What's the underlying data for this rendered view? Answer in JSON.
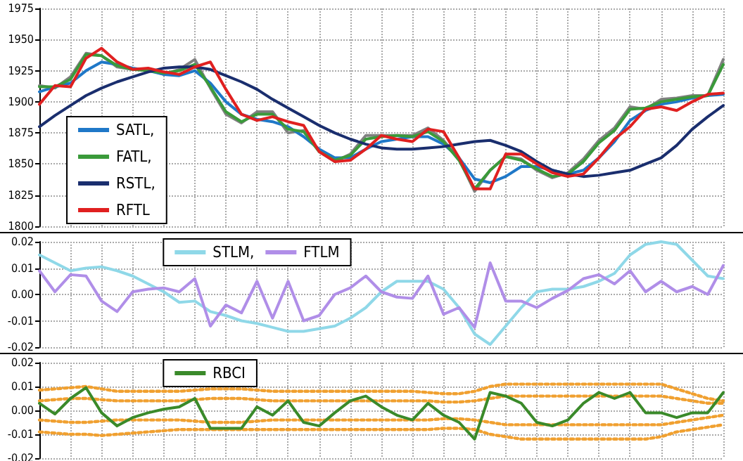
{
  "chart_data": [
    {
      "type": "line",
      "categories": [
        null,
        null,
        null,
        null,
        null,
        null,
        null,
        null,
        null,
        null,
        null,
        null,
        null,
        null,
        null,
        null,
        null,
        null,
        null,
        null,
        null,
        null,
        null,
        null,
        null,
        null,
        null,
        null,
        null,
        null,
        null,
        null,
        null,
        null,
        null,
        null,
        null,
        null,
        null,
        null,
        null,
        null,
        null,
        null,
        null
      ],
      "series": [
        {
          "color": "#808080",
          "values": [
            1913,
            1911,
            1920,
            1939,
            1937,
            1928,
            1926,
            1926,
            1922,
            1926,
            1934,
            1911,
            1890,
            1883,
            1892,
            1892,
            1875,
            1877,
            1860,
            1852,
            1858,
            1873,
            1873,
            1873,
            1873,
            1879,
            1869,
            1854,
            1828,
            1845,
            1856,
            1854,
            1845,
            1839,
            1843,
            1854,
            1869,
            1879,
            1896,
            1894,
            1902,
            1903,
            1905,
            1905,
            1934
          ]
        },
        {
          "name": "SATL,",
          "color": "#1f78c8",
          "values": [
            1908,
            1912,
            1915,
            1925,
            1932,
            1930,
            1927,
            1925,
            1922,
            1921,
            1925,
            1915,
            1900,
            1890,
            1886,
            1884,
            1880,
            1872,
            1862,
            1855,
            1855,
            1862,
            1868,
            1870,
            1872,
            1872,
            1866,
            1855,
            1838,
            1835,
            1840,
            1848,
            1848,
            1845,
            1842,
            1845,
            1855,
            1868,
            1885,
            1893,
            1898,
            1900,
            1903,
            1905,
            1906
          ]
        },
        {
          "name": "FATL,",
          "color": "#3a9a3a",
          "values": [
            1912,
            1912,
            1918,
            1938,
            1937,
            1929,
            1926,
            1925,
            1923,
            1925,
            1930,
            1912,
            1892,
            1884,
            1890,
            1890,
            1878,
            1876,
            1860,
            1853,
            1857,
            1870,
            1872,
            1873,
            1872,
            1876,
            1868,
            1853,
            1830,
            1845,
            1856,
            1853,
            1846,
            1840,
            1842,
            1852,
            1867,
            1877,
            1894,
            1895,
            1900,
            1902,
            1904,
            1905,
            1930
          ]
        },
        {
          "name": "RSTL,",
          "color": "#1a2e6e",
          "values": [
            1880,
            1889,
            1897,
            1905,
            1911,
            1916,
            1920,
            1924,
            1927,
            1928,
            1928,
            1926,
            1921,
            1916,
            1910,
            1902,
            1895,
            1888,
            1881,
            1875,
            1870,
            1866,
            1863,
            1862,
            1862,
            1863,
            1864,
            1866,
            1868,
            1869,
            1865,
            1860,
            1852,
            1845,
            1842,
            1840,
            1841,
            1843,
            1845,
            1850,
            1855,
            1865,
            1878,
            1888,
            1897
          ]
        },
        {
          "name": "RFTL",
          "color": "#e02020",
          "values": [
            1898,
            1913,
            1912,
            1935,
            1943,
            1932,
            1926,
            1927,
            1924,
            1922,
            1928,
            1932,
            1910,
            1890,
            1885,
            1888,
            1884,
            1881,
            1860,
            1852,
            1853,
            1862,
            1873,
            1870,
            1868,
            1878,
            1876,
            1855,
            1830,
            1830,
            1858,
            1858,
            1850,
            1843,
            1840,
            1842,
            1855,
            1870,
            1880,
            1894,
            1896,
            1893,
            1900,
            1906,
            1907
          ]
        }
      ],
      "ylim": [
        1800,
        1975
      ],
      "yticks": [
        1800,
        1825,
        1850,
        1875,
        1900,
        1925,
        1950,
        1975
      ],
      "grid": true,
      "legend": "bottom left",
      "tick_labels": "y",
      "marker": "none"
    },
    {
      "type": "line",
      "categories": [
        null,
        null,
        null,
        null,
        null,
        null,
        null,
        null,
        null,
        null,
        null,
        null,
        null,
        null,
        null,
        null,
        null,
        null,
        null,
        null,
        null,
        null,
        null,
        null,
        null,
        null,
        null,
        null,
        null,
        null,
        null,
        null,
        null,
        null,
        null,
        null,
        null,
        null,
        null,
        null,
        null,
        null,
        null,
        null,
        null
      ],
      "series": [
        {
          "name": "STLM,",
          "color": "#8fd8e8",
          "values": [
            0.015,
            0.012,
            0.009,
            0.01,
            0.0105,
            0.009,
            0.007,
            0.004,
            0.001,
            -0.003,
            -0.0025,
            -0.0065,
            -0.008,
            -0.01,
            -0.011,
            -0.0125,
            -0.014,
            -0.014,
            -0.013,
            -0.012,
            -0.009,
            -0.005,
            0.001,
            0.005,
            0.005,
            0.005,
            0.002,
            -0.005,
            -0.015,
            -0.019,
            -0.012,
            -0.005,
            0.001,
            0.002,
            0.002,
            0.003,
            0.005,
            0.008,
            0.015,
            0.019,
            0.02,
            0.019,
            0.013,
            0.007,
            0.006
          ]
        },
        {
          "name": "FTLM",
          "color": "#b08ee8",
          "values": [
            0.009,
            0.001,
            0.0075,
            0.007,
            -0.0025,
            -0.0065,
            0.001,
            0.002,
            0.0025,
            0.001,
            0.006,
            -0.012,
            -0.004,
            -0.007,
            0.005,
            -0.009,
            0.005,
            -0.01,
            -0.008,
            0,
            0.0025,
            0.007,
            0.001,
            -0.001,
            -0.0015,
            0.007,
            -0.0075,
            -0.005,
            -0.0125,
            0.012,
            -0.0025,
            -0.0025,
            -0.005,
            -0.0015,
            0.0015,
            0.006,
            0.0075,
            0.004,
            0.009,
            0.001,
            0.005,
            0.001,
            0.003,
            0,
            0.011
          ]
        }
      ],
      "ylim": [
        -0.02,
        0.02
      ],
      "yticks": [
        {
          "value": -0.02,
          "label": "-0.02"
        },
        {
          "value": -0.01,
          "label": "-0.01"
        },
        {
          "value": 0,
          "label": "0.00"
        },
        {
          "value": 0.01,
          "label": "0.01"
        },
        {
          "value": 0.02,
          "label": "0.02"
        }
      ],
      "grid": true,
      "legend": "top left",
      "tick_labels": "y",
      "marker": "none"
    },
    {
      "type": "line",
      "categories": [
        null,
        null,
        null,
        null,
        null,
        null,
        null,
        null,
        null,
        null,
        null,
        null,
        null,
        null,
        null,
        null,
        null,
        null,
        null,
        null,
        null,
        null,
        null,
        null,
        null,
        null,
        null,
        null,
        null,
        null,
        null,
        null,
        null,
        null,
        null,
        null,
        null,
        null,
        null,
        null,
        null,
        null,
        null,
        null,
        null
      ],
      "series": [
        {
          "color": "#f0a030",
          "line_style": "dotted",
          "values": [
            0.0085,
            0.009,
            0.0095,
            0.01,
            0.009,
            0.008,
            0.008,
            0.008,
            0.008,
            0.008,
            0.0085,
            0.009,
            0.009,
            0.009,
            0.0085,
            0.008,
            0.008,
            0.008,
            0.008,
            0.008,
            0.008,
            0.008,
            0.008,
            0.008,
            0.008,
            0.0075,
            0.007,
            0.007,
            0.008,
            0.01,
            0.011,
            0.011,
            0.011,
            0.011,
            0.011,
            0.011,
            0.011,
            0.011,
            0.011,
            0.011,
            0.011,
            0.009,
            0.007,
            0.005,
            0.004
          ]
        },
        {
          "color": "#f0a030",
          "line_style": "dotted",
          "values": [
            0.004,
            0.0045,
            0.005,
            0.005,
            0.0045,
            0.004,
            0.004,
            0.004,
            0.004,
            0.004,
            0.0045,
            0.005,
            0.005,
            0.005,
            0.0045,
            0.004,
            0.004,
            0.004,
            0.004,
            0.004,
            0.004,
            0.004,
            0.004,
            0.004,
            0.004,
            0.004,
            0.0035,
            0.0035,
            0.004,
            0.005,
            0.006,
            0.006,
            0.006,
            0.006,
            0.006,
            0.006,
            0.006,
            0.006,
            0.006,
            0.006,
            0.006,
            0.005,
            0.004,
            0.003,
            0.003
          ]
        },
        {
          "color": "#f0a030",
          "line_style": "dotted",
          "values": [
            -0.004,
            -0.0045,
            -0.005,
            -0.005,
            -0.0045,
            -0.004,
            -0.004,
            -0.004,
            -0.004,
            -0.004,
            -0.0045,
            -0.005,
            -0.005,
            -0.005,
            -0.0045,
            -0.004,
            -0.004,
            -0.004,
            -0.004,
            -0.004,
            -0.004,
            -0.004,
            -0.004,
            -0.004,
            -0.004,
            -0.004,
            -0.0035,
            -0.0035,
            -0.004,
            -0.005,
            -0.006,
            -0.006,
            -0.006,
            -0.006,
            -0.006,
            -0.006,
            -0.006,
            -0.006,
            -0.006,
            -0.006,
            -0.006,
            -0.005,
            -0.004,
            -0.003,
            -0.002
          ]
        },
        {
          "color": "#f0a030",
          "line_style": "dotted",
          "values": [
            -0.009,
            -0.0095,
            -0.01,
            -0.01,
            -0.0105,
            -0.01,
            -0.0095,
            -0.009,
            -0.0085,
            -0.008,
            -0.008,
            -0.008,
            -0.008,
            -0.008,
            -0.008,
            -0.008,
            -0.008,
            -0.008,
            -0.008,
            -0.008,
            -0.008,
            -0.008,
            -0.008,
            -0.008,
            -0.008,
            -0.008,
            -0.0075,
            -0.0075,
            -0.008,
            -0.01,
            -0.011,
            -0.012,
            -0.012,
            -0.012,
            -0.012,
            -0.012,
            -0.012,
            -0.012,
            -0.012,
            -0.012,
            -0.011,
            -0.009,
            -0.008,
            -0.007,
            -0.006
          ]
        },
        {
          "name": "RBCI",
          "color": "#3a8a2a",
          "values": [
            0.003,
            -0.0015,
            0.005,
            0.0095,
            -0.001,
            -0.0065,
            -0.003,
            -0.001,
            0.0005,
            0.0015,
            0.005,
            -0.0075,
            -0.0075,
            -0.0075,
            0.0015,
            -0.002,
            0.004,
            -0.005,
            -0.0065,
            -0.001,
            0.004,
            0.006,
            0.0015,
            -0.002,
            -0.004,
            0.003,
            -0.002,
            -0.005,
            -0.012,
            0.0075,
            0.006,
            0.003,
            -0.005,
            -0.0065,
            -0.004,
            0.003,
            0.0075,
            0.005,
            0.0075,
            -0.001,
            -0.001,
            -0.003,
            -0.001,
            -0.001,
            0.0075
          ]
        }
      ],
      "ylim": [
        -0.02,
        0.02
      ],
      "yticks": [
        {
          "value": -0.02,
          "label": "-0.02"
        },
        {
          "value": -0.01,
          "label": "-0.01"
        },
        {
          "value": 0,
          "label": "0.00"
        },
        {
          "value": 0.01,
          "label": "0.01"
        },
        {
          "value": 0.02,
          "label": "0.02"
        }
      ],
      "grid": true,
      "legend": "top left",
      "tick_labels": "y",
      "marker": "none"
    }
  ]
}
